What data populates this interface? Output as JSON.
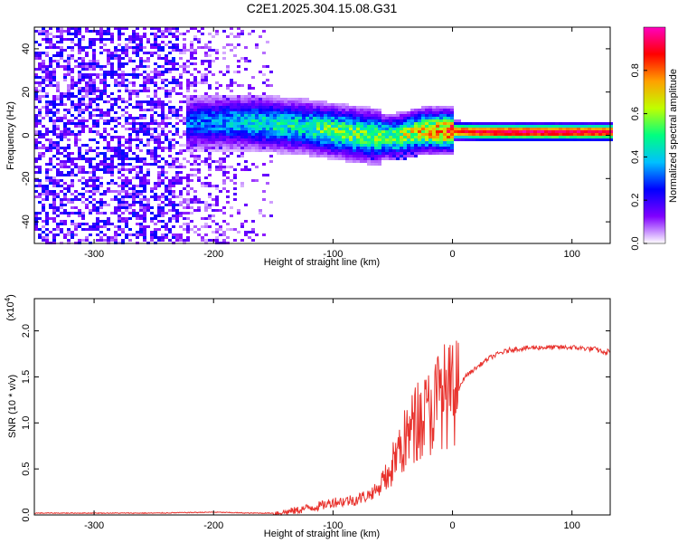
{
  "title": "C2E1.2025.304.15.08.G31",
  "chart_data": [
    {
      "type": "heatmap",
      "xlabel": "Height of straight line (km)",
      "ylabel": "Frequency (Hz)",
      "xlim": [
        -350,
        132
      ],
      "ylim": [
        -50,
        50
      ],
      "xticks": [
        -300,
        -200,
        -100,
        0,
        100
      ],
      "xtick_labels": [
        "-300",
        "-200",
        "-100",
        "0",
        "100"
      ],
      "yticks": [
        -40,
        -20,
        0,
        20,
        40
      ],
      "ytick_labels": [
        "-40",
        "-20",
        "0",
        "20",
        "40"
      ],
      "colorbar": {
        "label": "Normalized spectral amplitude",
        "range": [
          0,
          1
        ],
        "ticks": [
          0.0,
          0.2,
          0.4,
          0.6,
          0.8
        ],
        "tick_labels": [
          "0.0",
          "0.2",
          "0.4",
          "0.6",
          "0.8"
        ],
        "colors": [
          "#ffffff",
          "#8000ff",
          "#0000ff",
          "#00c0ff",
          "#00ff80",
          "#c0ff00",
          "#ffa000",
          "#ff0000",
          "#ff00c0"
        ]
      },
      "signal_trace": [
        {
          "x": -222,
          "freq": 5.5,
          "amp": 0.3
        },
        {
          "x": -200,
          "freq": 6.0,
          "amp": 0.35
        },
        {
          "x": -175,
          "freq": 6.0,
          "amp": 0.4
        },
        {
          "x": -150,
          "freq": 5.0,
          "amp": 0.45
        },
        {
          "x": -125,
          "freq": 4.0,
          "amp": 0.45
        },
        {
          "x": -100,
          "freq": 2.0,
          "amp": 0.55
        },
        {
          "x": -75,
          "freq": 0.0,
          "amp": 0.55
        },
        {
          "x": -50,
          "freq": -1.0,
          "amp": 0.55
        },
        {
          "x": -25,
          "freq": 2.0,
          "amp": 0.7
        },
        {
          "x": 0,
          "freq": 2.0,
          "amp": 0.85
        },
        {
          "x": 25,
          "freq": 1.5,
          "amp": 0.92
        },
        {
          "x": 50,
          "freq": 1.5,
          "amp": 0.95
        },
        {
          "x": 75,
          "freq": 1.5,
          "amp": 0.95
        },
        {
          "x": 100,
          "freq": 1.5,
          "amp": 0.95
        },
        {
          "x": 132,
          "freq": 1.5,
          "amp": 0.92
        }
      ]
    },
    {
      "type": "line",
      "xlabel": "Height of straight line (km)",
      "ylabel": "SNR (10 * v/v)",
      "y_multiplier": "(x10",
      "y_multiplier_exp": "4",
      "y_multiplier_close": ")",
      "xlim": [
        -350,
        132
      ],
      "ylim": [
        0,
        2.35
      ],
      "xticks": [
        -300,
        -200,
        -100,
        0,
        100
      ],
      "xtick_labels": [
        "-300",
        "-200",
        "-100",
        "0",
        "100"
      ],
      "yticks": [
        0.0,
        0.5,
        1.0,
        1.5,
        2.0
      ],
      "ytick_labels": [
        "0.0",
        "0.5",
        "1.0",
        "1.5",
        "2.0"
      ],
      "color": "#e8322d",
      "series": [
        {
          "x": [
            -350,
            -300,
            -250,
            -200,
            -170,
            -150,
            -140,
            -130,
            -120,
            -110,
            -100,
            -90,
            -80,
            -70,
            -60,
            -55,
            -50,
            -45,
            -40,
            -35,
            -30,
            -25,
            -20,
            -15,
            -12,
            -10,
            -5,
            0,
            5,
            10,
            20,
            30,
            40,
            50,
            60,
            70,
            80,
            90,
            100,
            110,
            120,
            125,
            128,
            130,
            132
          ],
          "y": [
            0.02,
            0.02,
            0.02,
            0.03,
            0.02,
            0.02,
            0.03,
            0.05,
            0.08,
            0.1,
            0.14,
            0.15,
            0.17,
            0.22,
            0.3,
            0.4,
            0.55,
            0.7,
            0.8,
            0.9,
            1.0,
            1.05,
            1.1,
            1.2,
            1.25,
            1.3,
            1.3,
            1.3,
            1.35,
            1.5,
            1.6,
            1.7,
            1.76,
            1.8,
            1.81,
            1.82,
            1.82,
            1.82,
            1.82,
            1.81,
            1.8,
            1.78,
            1.75,
            1.78,
            1.78
          ]
        }
      ]
    }
  ]
}
